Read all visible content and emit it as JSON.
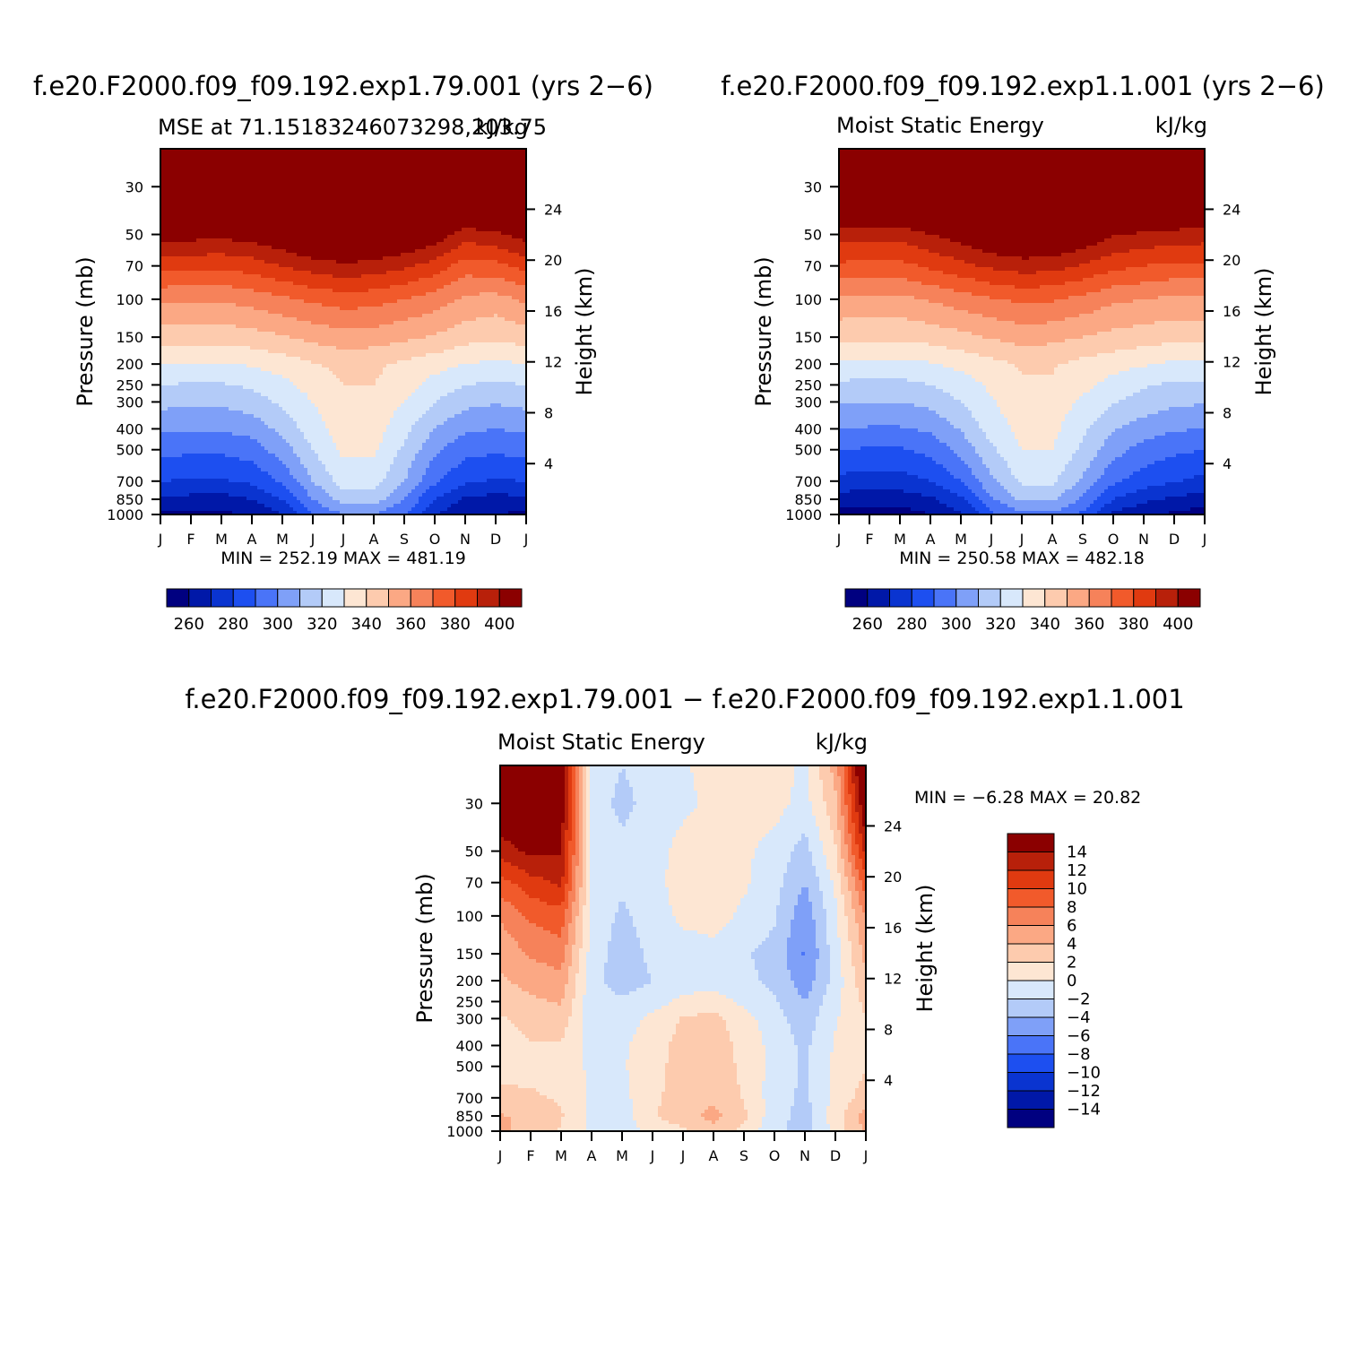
{
  "chart_data": [
    {
      "type": "heatmap",
      "header": "f.e20.F2000.f09_f09.192.exp1.79.001 (yrs 2−6)",
      "left_title": "MSE at 71.15183246073298,203.75",
      "right_title": "kJ/kg",
      "x_ticks": [
        "J",
        "F",
        "M",
        "A",
        "M",
        "J",
        "J",
        "A",
        "S",
        "O",
        "N",
        "D",
        "J"
      ],
      "pressure_ticks": [
        30,
        50,
        70,
        100,
        150,
        200,
        250,
        300,
        400,
        500,
        700,
        850,
        1000
      ],
      "height_ticks": [
        24,
        20,
        16,
        12,
        8,
        4
      ],
      "ylabel": "Pressure (mb)",
      "ylabel2": "Height (km)",
      "stats": "MIN = 252.19  MAX = 481.19",
      "levels": [
        260,
        270,
        280,
        290,
        300,
        310,
        320,
        330,
        340,
        350,
        360,
        370,
        380,
        390,
        400
      ],
      "colorbar_labels": [
        "260",
        "280",
        "300",
        "320",
        "340",
        "360",
        "380",
        "400"
      ],
      "colors": [
        "#000080",
        "#0018a8",
        "#0a34d0",
        "#1d4ff0",
        "#4a74f8",
        "#7fa0f8",
        "#b3cbf8",
        "#d8e8fb",
        "#fde6d3",
        "#fdcbae",
        "#fba884",
        "#f6825a",
        "#f15a2b",
        "#e03a10",
        "#b8200a",
        "#8b0000"
      ],
      "field": {
        "pressures": [
          1000,
          850,
          700,
          500,
          400,
          300,
          250,
          200,
          150,
          100,
          70,
          50,
          30,
          20
        ],
        "z": [
          [
            258,
            258,
            257,
            262,
            270,
            290,
            300,
            300,
            290,
            270,
            262,
            260,
            258
          ],
          [
            268,
            267,
            266,
            270,
            280,
            300,
            315,
            315,
            300,
            280,
            268,
            266,
            268
          ],
          [
            280,
            279,
            279,
            282,
            292,
            310,
            325,
            325,
            310,
            292,
            282,
            279,
            280
          ],
          [
            293,
            292,
            292,
            295,
            305,
            320,
            332,
            332,
            318,
            302,
            293,
            292,
            293
          ],
          [
            302,
            301,
            301,
            304,
            313,
            326,
            335,
            335,
            323,
            310,
            302,
            300,
            302
          ],
          [
            313,
            312,
            312,
            315,
            322,
            330,
            338,
            337,
            330,
            320,
            313,
            311,
            313
          ],
          [
            320,
            319,
            319,
            322,
            327,
            334,
            340,
            340,
            334,
            326,
            320,
            318,
            320
          ],
          [
            330,
            329,
            329,
            331,
            335,
            339,
            343,
            342,
            338,
            334,
            330,
            328,
            330
          ],
          [
            345,
            344,
            344,
            346,
            349,
            353,
            356,
            355,
            352,
            349,
            344,
            342,
            345
          ],
          [
            362,
            361,
            361,
            364,
            368,
            372,
            375,
            374,
            370,
            365,
            358,
            356,
            362
          ],
          [
            384,
            383,
            382,
            385,
            390,
            395,
            398,
            396,
            392,
            386,
            375,
            377,
            384
          ],
          [
            405,
            404,
            403,
            405,
            410,
            416,
            420,
            418,
            413,
            407,
            395,
            398,
            405
          ],
          [
            440,
            440,
            440,
            441,
            444,
            450,
            455,
            453,
            448,
            443,
            434,
            436,
            440
          ],
          [
            470,
            470,
            470,
            470,
            472,
            476,
            478,
            477,
            474,
            471,
            466,
            467,
            470
          ]
        ]
      }
    },
    {
      "type": "heatmap",
      "header": "f.e20.F2000.f09_f09.192.exp1.1.001 (yrs 2−6)",
      "left_title": "Moist Static Energy",
      "right_title": "kJ/kg",
      "x_ticks": [
        "J",
        "F",
        "M",
        "A",
        "M",
        "J",
        "J",
        "A",
        "S",
        "O",
        "N",
        "D",
        "J"
      ],
      "pressure_ticks": [
        30,
        50,
        70,
        100,
        150,
        200,
        250,
        300,
        400,
        500,
        700,
        850,
        1000
      ],
      "height_ticks": [
        24,
        20,
        16,
        12,
        8,
        4
      ],
      "ylabel": "Pressure (mb)",
      "ylabel2": "Height (km)",
      "stats": "MIN = 250.58  MAX = 482.18",
      "levels": [
        260,
        270,
        280,
        290,
        300,
        310,
        320,
        330,
        340,
        350,
        360,
        370,
        380,
        390,
        400
      ],
      "colorbar_labels": [
        "260",
        "280",
        "300",
        "320",
        "340",
        "360",
        "380",
        "400"
      ],
      "colors": [
        "#000080",
        "#0018a8",
        "#0a34d0",
        "#1d4ff0",
        "#4a74f8",
        "#7fa0f8",
        "#b3cbf8",
        "#d8e8fb",
        "#fde6d3",
        "#fdcbae",
        "#fba884",
        "#f6825a",
        "#f15a2b",
        "#e03a10",
        "#b8200a",
        "#8b0000"
      ],
      "field": {
        "pressures": [
          1000,
          850,
          700,
          500,
          400,
          300,
          250,
          200,
          150,
          100,
          70,
          50,
          30,
          20
        ],
        "z": [
          [
            255,
            255,
            255,
            260,
            268,
            288,
            298,
            298,
            288,
            268,
            262,
            258,
            255
          ],
          [
            265,
            264,
            264,
            268,
            278,
            298,
            312,
            312,
            298,
            280,
            272,
            268,
            265
          ],
          [
            277,
            276,
            276,
            280,
            290,
            308,
            322,
            322,
            308,
            292,
            285,
            281,
            277
          ],
          [
            290,
            289,
            289,
            293,
            303,
            318,
            330,
            330,
            318,
            304,
            296,
            292,
            290
          ],
          [
            300,
            299,
            299,
            302,
            311,
            325,
            333,
            333,
            322,
            311,
            305,
            301,
            300
          ],
          [
            311,
            310,
            310,
            313,
            320,
            329,
            336,
            336,
            328,
            321,
            316,
            312,
            311
          ],
          [
            318,
            317,
            317,
            320,
            325,
            332,
            339,
            339,
            333,
            326,
            321,
            318,
            318
          ],
          [
            328,
            327,
            327,
            329,
            333,
            337,
            341,
            341,
            337,
            334,
            331,
            328,
            328
          ],
          [
            343,
            342,
            342,
            344,
            347,
            351,
            354,
            353,
            350,
            347,
            345,
            343,
            343
          ],
          [
            358,
            357,
            357,
            361,
            365,
            369,
            372,
            371,
            367,
            362,
            360,
            358,
            358
          ],
          [
            378,
            377,
            377,
            382,
            387,
            392,
            395,
            394,
            389,
            383,
            380,
            378,
            378
          ],
          [
            395,
            394,
            394,
            400,
            405,
            412,
            416,
            415,
            409,
            401,
            398,
            396,
            395
          ],
          [
            435,
            434,
            434,
            437,
            441,
            447,
            452,
            451,
            445,
            439,
            437,
            436,
            435
          ],
          [
            468,
            468,
            468,
            469,
            471,
            475,
            477,
            476,
            473,
            470,
            469,
            468,
            468
          ]
        ]
      }
    },
    {
      "type": "heatmap",
      "header": "f.e20.F2000.f09_f09.192.exp1.79.001 − f.e20.F2000.f09_f09.192.exp1.1.001",
      "left_title": "Moist Static Energy",
      "right_title": "kJ/kg",
      "x_ticks": [
        "J",
        "F",
        "M",
        "A",
        "M",
        "J",
        "J",
        "A",
        "S",
        "O",
        "N",
        "D",
        "J"
      ],
      "pressure_ticks": [
        30,
        50,
        70,
        100,
        150,
        200,
        250,
        300,
        400,
        500,
        700,
        850,
        1000
      ],
      "height_ticks": [
        24,
        20,
        16,
        12,
        8,
        4
      ],
      "ylabel": "Pressure (mb)",
      "ylabel2": "Height (km)",
      "stats": "MIN =   −6.28  MAX =   20.82",
      "levels": [
        -14,
        -12,
        -10,
        -8,
        -6,
        -4,
        -2,
        0,
        2,
        4,
        6,
        8,
        10,
        12,
        14
      ],
      "colorbar_labels": [
        "14",
        "12",
        "10",
        "8",
        "6",
        "4",
        "2",
        "0",
        "−2",
        "−4",
        "−6",
        "−8",
        "−10",
        "−12",
        "−14"
      ],
      "colors": [
        "#000080",
        "#0018a8",
        "#0a34d0",
        "#1d4ff0",
        "#4a74f8",
        "#7fa0f8",
        "#b3cbf8",
        "#d8e8fb",
        "#fde6d3",
        "#fdcbae",
        "#fba884",
        "#f6825a",
        "#f15a2b",
        "#e03a10",
        "#b8200a",
        "#8b0000"
      ],
      "field": {
        "pressures": [
          1000,
          850,
          700,
          500,
          400,
          300,
          250,
          200,
          150,
          100,
          70,
          50,
          30,
          20
        ],
        "z": [
          [
            4.5,
            3.2,
            1.8,
            -0.5,
            -1.2,
            0.8,
            1.5,
            3.5,
            1.2,
            -1.5,
            -3,
            0.6,
            4.5
          ],
          [
            4.2,
            3.5,
            2.2,
            -0.3,
            -1.0,
            1.8,
            3.2,
            4.6,
            2.5,
            -1.2,
            -2.8,
            1.1,
            4.8
          ],
          [
            2.5,
            2.2,
            1.8,
            -0.3,
            -0.6,
            1.5,
            3.0,
            3.6,
            1.8,
            -1.0,
            -2.5,
            0.6,
            3.0
          ],
          [
            1.2,
            1.6,
            1.5,
            -0.5,
            -0.2,
            1.2,
            3.0,
            3.3,
            1.5,
            -0.8,
            -2.3,
            0.4,
            1.8
          ],
          [
            1.0,
            1.8,
            1.7,
            -0.8,
            -0.3,
            1.0,
            2.8,
            3.1,
            1.3,
            -0.7,
            -2.5,
            0.3,
            1.4
          ],
          [
            1.8,
            2.8,
            3.2,
            -1.2,
            -0.9,
            0.5,
            2.2,
            2.6,
            0.8,
            -1.2,
            -3.2,
            -0.2,
            1.8
          ],
          [
            2.6,
            3.6,
            4.2,
            -1.4,
            -1.8,
            -1.0,
            0.6,
            1.0,
            -0.5,
            -1.8,
            -4.0,
            -0.6,
            2.6
          ],
          [
            3.6,
            4.8,
            5.4,
            -1.5,
            -2.8,
            -2.0,
            -1.2,
            -0.8,
            -1.6,
            -2.4,
            -5.2,
            -1.2,
            3.6
          ],
          [
            4.6,
            6.2,
            7.0,
            -1.0,
            -3.0,
            -1.6,
            -1.0,
            -0.6,
            -1.8,
            -2.6,
            -6.3,
            -0.9,
            4.6
          ],
          [
            6.2,
            8.4,
            9.2,
            -0.6,
            -2.4,
            -1.0,
            0.5,
            0.8,
            -0.4,
            -1.8,
            -5.4,
            -0.4,
            6.2
          ],
          [
            9.2,
            11.2,
            12.4,
            -0.4,
            -1.6,
            -0.6,
            0.8,
            1.2,
            0.3,
            -1.2,
            -4.0,
            0.4,
            9.2
          ],
          [
            12.8,
            14.6,
            14.2,
            -0.6,
            -1.4,
            -0.7,
            0.6,
            1.0,
            0.4,
            -0.8,
            -2.8,
            1.8,
            12.8
          ],
          [
            16.5,
            17.6,
            15.4,
            -0.8,
            -2.6,
            -1.2,
            -0.4,
            0.4,
            1.0,
            0.8,
            -0.8,
            3.5,
            16.5
          ],
          [
            18.5,
            19.2,
            16.2,
            -0.5,
            -2.0,
            -1.0,
            -0.2,
            0.6,
            1.2,
            1.0,
            -0.4,
            4.8,
            18.5
          ]
        ]
      }
    }
  ]
}
